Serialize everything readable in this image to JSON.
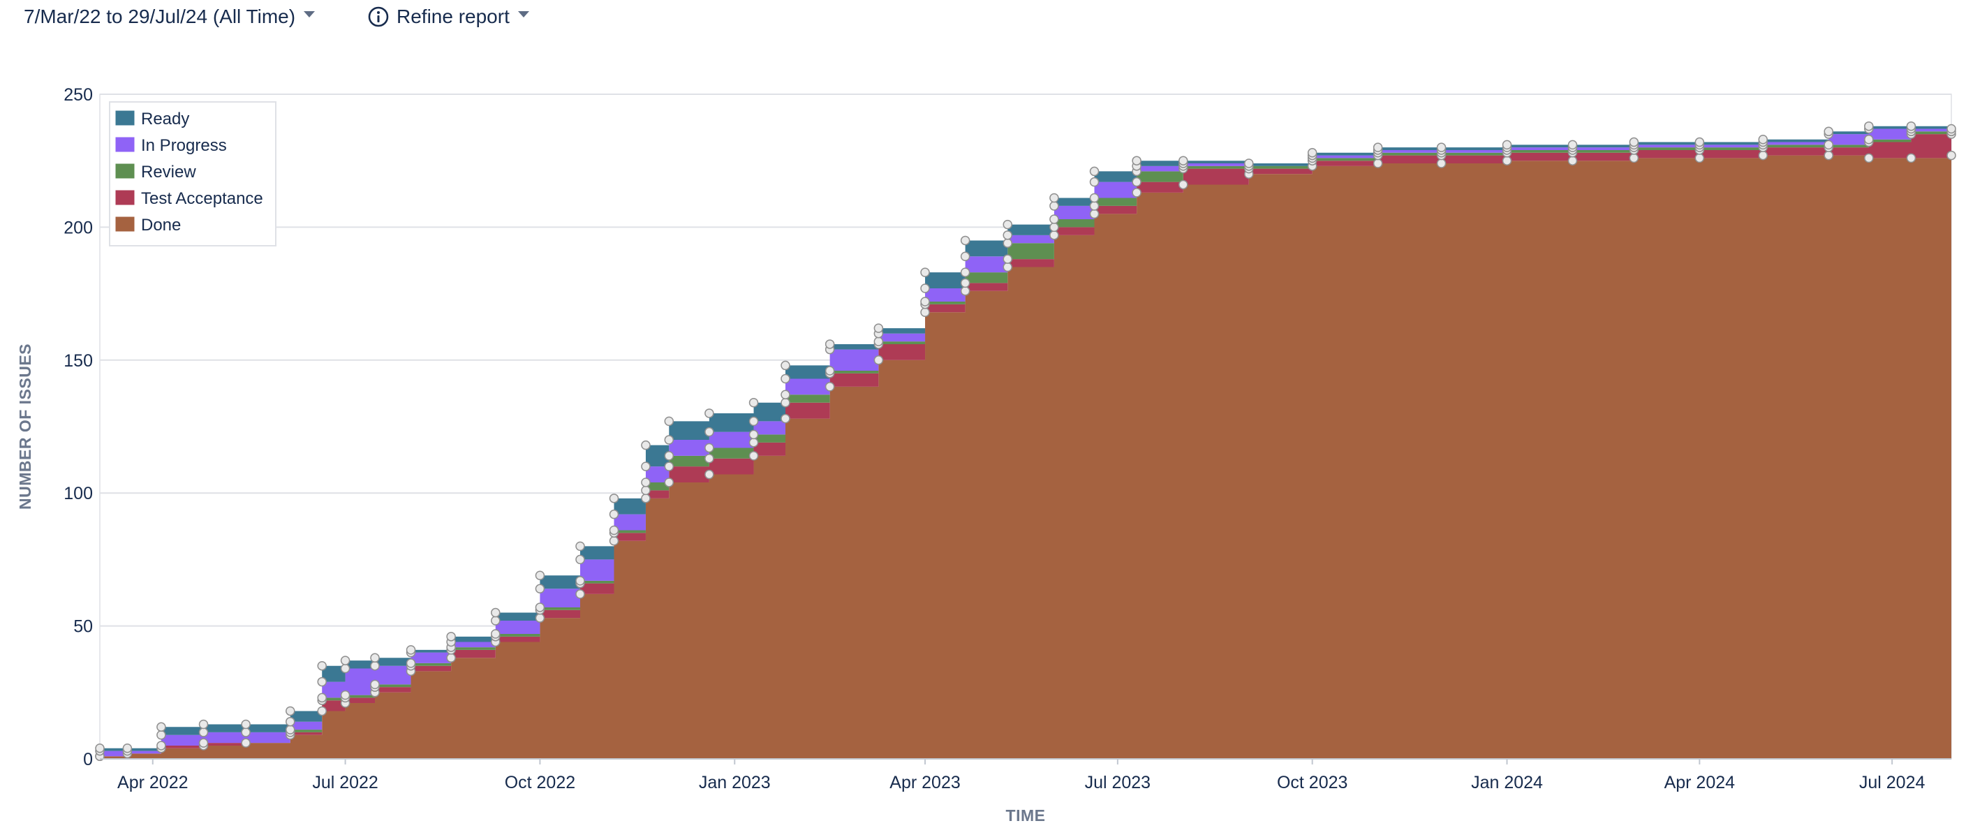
{
  "toolbar": {
    "date_range_label": "7/Mar/22 to 29/Jul/24 (All Time)",
    "refine_label": "Refine report"
  },
  "chart_data": {
    "type": "area",
    "stacked": true,
    "xlabel": "TIME",
    "ylabel": "NUMBER OF ISSUES",
    "xlim": [
      "2022-03-07",
      "2024-07-29"
    ],
    "ylim": [
      0,
      250
    ],
    "yticks": [
      0,
      50,
      100,
      150,
      200,
      250
    ],
    "xticks": [
      {
        "date": "2022-04-01",
        "label": "Apr 2022"
      },
      {
        "date": "2022-07-01",
        "label": "Jul 2022"
      },
      {
        "date": "2022-10-01",
        "label": "Oct 2022"
      },
      {
        "date": "2023-01-01",
        "label": "Jan 2023"
      },
      {
        "date": "2023-04-01",
        "label": "Apr 2023"
      },
      {
        "date": "2023-07-01",
        "label": "Jul 2023"
      },
      {
        "date": "2023-10-01",
        "label": "Oct 2023"
      },
      {
        "date": "2024-01-01",
        "label": "Jan 2024"
      },
      {
        "date": "2024-04-01",
        "label": "Apr 2024"
      },
      {
        "date": "2024-07-01",
        "label": "Jul 2024"
      }
    ],
    "grid": "horizontal",
    "legend_position": "top-left",
    "x": [
      "2022-03-07",
      "2022-03-20",
      "2022-04-05",
      "2022-04-25",
      "2022-05-15",
      "2022-06-05",
      "2022-06-20",
      "2022-07-01",
      "2022-07-15",
      "2022-08-01",
      "2022-08-20",
      "2022-09-10",
      "2022-10-01",
      "2022-10-20",
      "2022-11-05",
      "2022-11-20",
      "2022-12-01",
      "2022-12-20",
      "2023-01-10",
      "2023-01-25",
      "2023-02-15",
      "2023-03-10",
      "2023-04-01",
      "2023-04-20",
      "2023-05-10",
      "2023-06-01",
      "2023-06-20",
      "2023-07-10",
      "2023-08-01",
      "2023-09-01",
      "2023-10-01",
      "2023-11-01",
      "2023-12-01",
      "2024-01-01",
      "2024-02-01",
      "2024-03-01",
      "2024-04-01",
      "2024-05-01",
      "2024-06-01",
      "2024-06-20",
      "2024-07-10",
      "2024-07-29"
    ],
    "series": [
      {
        "name": "Done",
        "color": "#a56240",
        "values": [
          1,
          2,
          4,
          5,
          6,
          9,
          18,
          21,
          25,
          33,
          38,
          44,
          53,
          62,
          82,
          98,
          104,
          107,
          114,
          128,
          140,
          150,
          168,
          176,
          185,
          197,
          205,
          213,
          216,
          220,
          223,
          224,
          224,
          225,
          225,
          226,
          226,
          227,
          227,
          226,
          226,
          227
        ]
      },
      {
        "name": "Test Acceptance",
        "color": "#ae3b55",
        "values": [
          0,
          0,
          1,
          1,
          0,
          1,
          4,
          2,
          2,
          2,
          3,
          2,
          3,
          4,
          3,
          3,
          6,
          6,
          5,
          6,
          5,
          6,
          3,
          3,
          3,
          3,
          3,
          4,
          6,
          2,
          2,
          3,
          3,
          3,
          3,
          3,
          3,
          3,
          3,
          6,
          9,
          8
        ]
      },
      {
        "name": "Review",
        "color": "#5e8f51",
        "values": [
          0,
          0,
          0,
          0,
          0,
          1,
          1,
          1,
          1,
          1,
          1,
          1,
          1,
          1,
          1,
          3,
          4,
          4,
          3,
          3,
          1,
          1,
          1,
          4,
          6,
          3,
          3,
          4,
          1,
          1,
          1,
          1,
          1,
          1,
          1,
          1,
          1,
          1,
          1,
          1,
          1,
          1
        ]
      },
      {
        "name": "In Progress",
        "color": "#8f63f6",
        "values": [
          2,
          1,
          4,
          4,
          4,
          3,
          6,
          10,
          7,
          4,
          2,
          5,
          7,
          8,
          6,
          6,
          6,
          6,
          5,
          6,
          8,
          3,
          5,
          6,
          3,
          5,
          6,
          2,
          1,
          0,
          1,
          1,
          1,
          1,
          1,
          1,
          1,
          1,
          4,
          4,
          1,
          0
        ]
      },
      {
        "name": "Ready",
        "color": "#3b7893",
        "values": [
          1,
          1,
          3,
          3,
          3,
          4,
          6,
          3,
          3,
          1,
          2,
          3,
          5,
          5,
          6,
          8,
          7,
          7,
          7,
          5,
          2,
          2,
          6,
          6,
          4,
          3,
          4,
          2,
          1,
          1,
          1,
          1,
          1,
          1,
          1,
          1,
          1,
          1,
          1,
          1,
          1,
          1
        ]
      }
    ]
  }
}
